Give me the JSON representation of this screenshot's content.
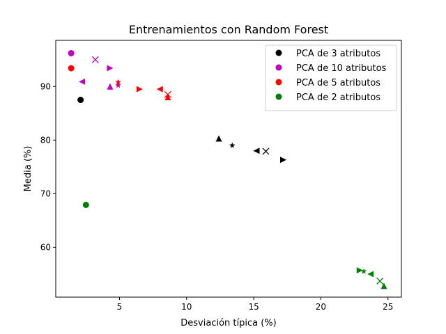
{
  "chart_data": {
    "type": "scatter",
    "title": "Entrenamientos con Random Forest",
    "xlabel": "Desviación típica (%)",
    "ylabel": "Media (%)",
    "xlim": [
      0.25,
      26.0
    ],
    "ylim": [
      50.7,
      98.6
    ],
    "xticks": [
      5,
      10,
      15,
      20,
      25
    ],
    "yticks": [
      60,
      70,
      80,
      90
    ],
    "grid": false,
    "legend_position": "top-right",
    "series": [
      {
        "name": "PCA de 3 atributos",
        "color": "#000000",
        "points": [
          {
            "x": 2.1,
            "y": 87.5,
            "marker": "circle"
          },
          {
            "x": 12.4,
            "y": 80.3,
            "marker": "triangle-up"
          },
          {
            "x": 13.4,
            "y": 79.0,
            "marker": "star"
          },
          {
            "x": 15.2,
            "y": 78.0,
            "marker": "triangle-left"
          },
          {
            "x": 15.9,
            "y": 77.9,
            "marker": "x"
          },
          {
            "x": 17.2,
            "y": 76.3,
            "marker": "triangle-right"
          }
        ]
      },
      {
        "name": "PCA de 10 atributos",
        "color": "#bf00bf",
        "points": [
          {
            "x": 1.4,
            "y": 96.2,
            "marker": "circle"
          },
          {
            "x": 3.2,
            "y": 95.0,
            "marker": "x"
          },
          {
            "x": 4.3,
            "y": 93.4,
            "marker": "triangle-right"
          },
          {
            "x": 2.2,
            "y": 90.9,
            "marker": "triangle-left"
          },
          {
            "x": 4.3,
            "y": 90.0,
            "marker": "triangle-up"
          },
          {
            "x": 4.9,
            "y": 90.2,
            "marker": "star"
          }
        ]
      },
      {
        "name": "PCA de 5 atributos",
        "color": "#ff0000",
        "points": [
          {
            "x": 1.4,
            "y": 93.4,
            "marker": "circle"
          },
          {
            "x": 4.9,
            "y": 90.8,
            "marker": "star"
          },
          {
            "x": 6.5,
            "y": 89.5,
            "marker": "triangle-right"
          },
          {
            "x": 8.0,
            "y": 89.5,
            "marker": "triangle-left"
          },
          {
            "x": 8.6,
            "y": 88.5,
            "marker": "x"
          },
          {
            "x": 8.6,
            "y": 88.0,
            "marker": "triangle-up"
          }
        ]
      },
      {
        "name": "PCA de 2 atributos",
        "color": "#008000",
        "points": [
          {
            "x": 2.5,
            "y": 67.9,
            "marker": "circle"
          },
          {
            "x": 22.9,
            "y": 55.7,
            "marker": "triangle-right"
          },
          {
            "x": 23.2,
            "y": 55.5,
            "marker": "star"
          },
          {
            "x": 23.7,
            "y": 55.0,
            "marker": "triangle-left"
          },
          {
            "x": 24.4,
            "y": 53.7,
            "marker": "x"
          },
          {
            "x": 24.7,
            "y": 52.8,
            "marker": "triangle-up"
          }
        ]
      }
    ]
  }
}
